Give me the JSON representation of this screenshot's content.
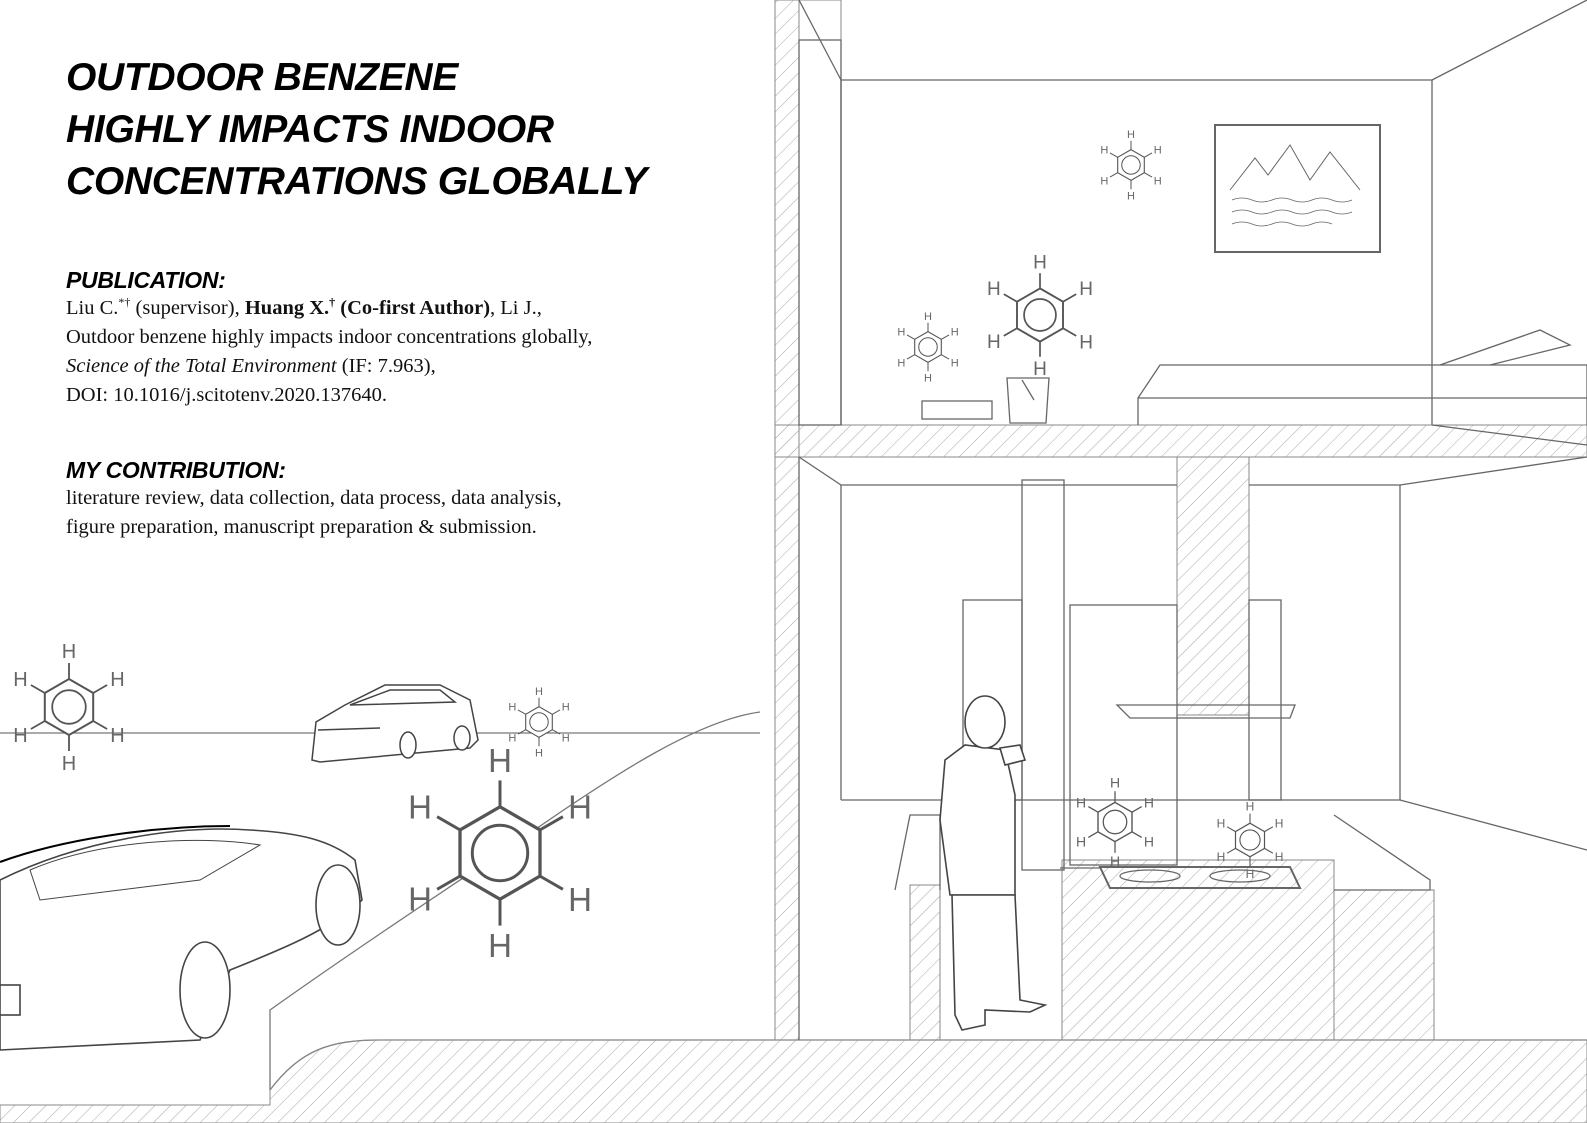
{
  "title": {
    "line1": "OUTDOOR BENZENE",
    "line2": "HIGHLY IMPACTS INDOOR",
    "line3": "CONCENTRATIONS GLOBALLY"
  },
  "publication": {
    "heading": "PUBLICATION:",
    "author1": "Liu C.",
    "author1_marks": "*†",
    "author1_role": " (supervisor), ",
    "author2": "Huang X.",
    "author2_marks": "†",
    "author2_role": " (Co-first Author)",
    "author3": ", Li J.,",
    "paper_title": "Outdoor benzene highly impacts indoor concentrations globally,",
    "journal": "Science of the Total Environment",
    "impact_factor": " (IF: 7.963),",
    "doi": "DOI: 10.1016/j.scitotenv.2020.137640."
  },
  "contribution": {
    "heading": "MY CONTRIBUTION:",
    "line1": "literature review, data collection, data process, data analysis,",
    "line2": "figure preparation, manuscript preparation & submission."
  },
  "illustration": {
    "atom_label": "H",
    "line_color": "#555555",
    "hatch_color": "#9a9a9a"
  }
}
